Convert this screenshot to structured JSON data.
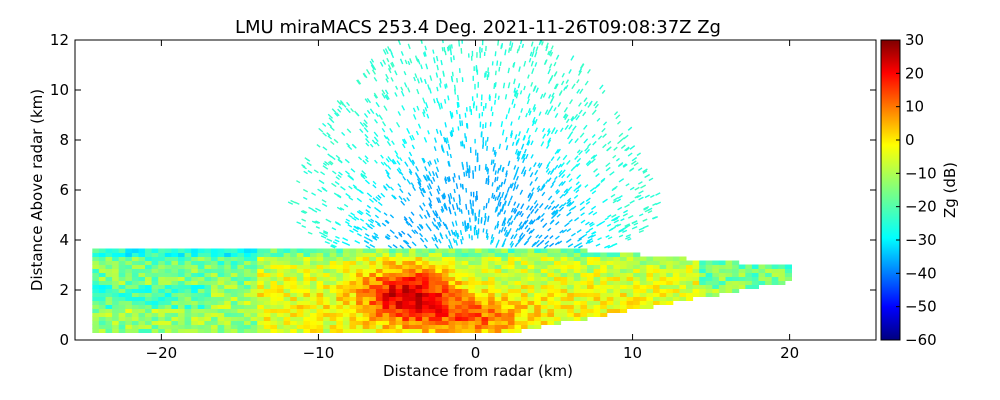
{
  "chart_data": {
    "type": "heatmap",
    "title": "LMU miraMACS 253.4 Deg. 2021-11-26T09:08:37Z  Zg",
    "xlabel": "Distance from radar (km)",
    "ylabel": "Distance Above radar  (km)",
    "xlim": [
      -25.5,
      25.5
    ],
    "ylim": [
      0,
      12
    ],
    "x_ticks": [
      -20,
      -10,
      0,
      10,
      20
    ],
    "x_tick_labels": [
      "−20",
      "−10",
      "0",
      "10",
      "20"
    ],
    "y_ticks": [
      0,
      2,
      4,
      6,
      8,
      10,
      12
    ],
    "y_tick_labels": [
      "0",
      "2",
      "4",
      "6",
      "8",
      "10",
      "12"
    ],
    "grid": false,
    "colorbar": {
      "label": "Zg (dB)",
      "range": [
        -60,
        30
      ],
      "ticks": [
        30,
        20,
        10,
        0,
        -10,
        -20,
        -30,
        -40,
        -50,
        -60
      ],
      "tick_labels": [
        "30",
        "20",
        "10",
        "0",
        "−10",
        "−20",
        "−30",
        "−40",
        "−50",
        "−60"
      ],
      "colormap": "jet"
    },
    "regions": [
      {
        "description": "low cloud layer",
        "x_range": [
          -24.5,
          20
        ],
        "z_top": 3.6,
        "zg_range": [
          -25,
          20
        ]
      },
      {
        "description": "strong echo core",
        "x_range": [
          -7,
          3
        ],
        "z_range": [
          0.3,
          3.5
        ],
        "zg_range": [
          5,
          22
        ]
      },
      {
        "description": "sparse noise above cloud",
        "z_range": [
          3.6,
          12
        ],
        "zg_range": [
          -35,
          -22
        ]
      }
    ]
  }
}
